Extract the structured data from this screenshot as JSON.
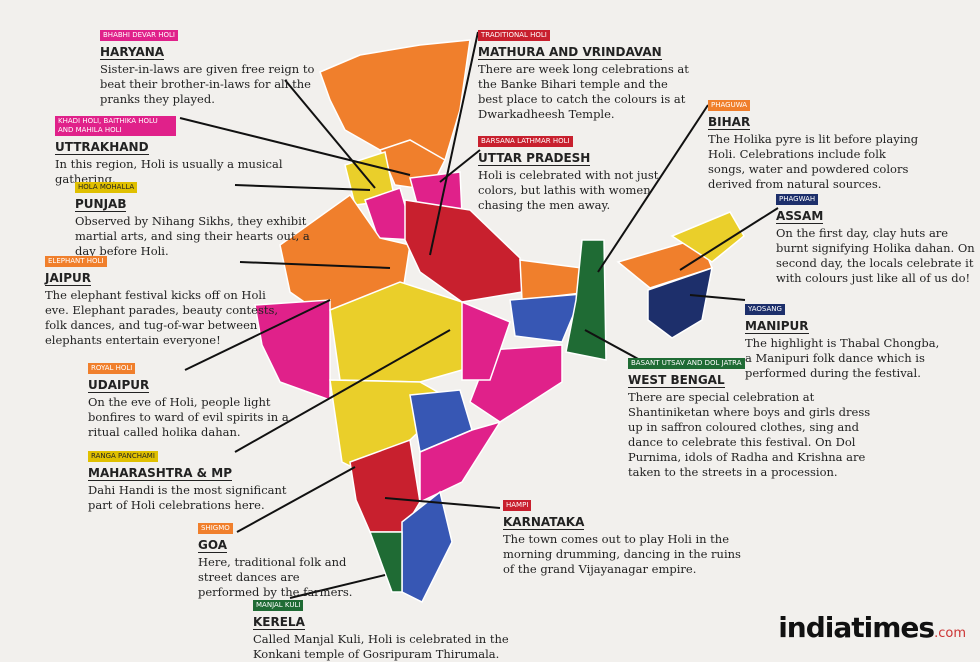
{
  "annotations": [
    {
      "tag": "BHABHI DEVAR HOLI",
      "title": "HARYANA",
      "text": "Sister-in-laws are given free reign to beat their brother-in-laws for all the pranks they played."
    },
    {
      "tag": "KHADI HOLI, BAITHIKA HOLU AND MAHILA HOLI",
      "title": "UTTRAKHAND",
      "text": "In this region, Holi is usually a musical gathering."
    },
    {
      "tag": "HOLA MOHALLA",
      "title": "PUNJAB",
      "text": "Observed by Nihang Sikhs, they exhibit martial arts, and sing their hearts out, a day before Holi."
    },
    {
      "tag": "ELEPHANT HOLI",
      "title": "JAIPUR",
      "text": "The elephant festival kicks off on Holi eve. Elephant parades, beauty contests, folk dances, and tug-of-war between elephants entertain everyone!"
    },
    {
      "tag": "ROYAL HOLI",
      "title": "UDAIPUR",
      "text": "On the eve of Holi, people light bonfires to ward of evil spirits in a ritual called holika dahan."
    },
    {
      "tag": "RANGA PANCHAMI",
      "title": "MAHARASHTRA & MP",
      "text": "Dahi Handi is the most significant part of Holi celebrations here."
    },
    {
      "tag": "SHIGMO",
      "title": "GOA",
      "text": "Here, traditional folk and street dances are performed by the farmers."
    },
    {
      "tag": "MANJAL KULI",
      "title": "KERELA",
      "text": "Called Manjal Kuli, Holi is celebrated in the Konkani temple of Gosripuram Thirumala."
    },
    {
      "tag": "TRADITIONAL HOLI",
      "title": "MATHURA AND VRINDAVAN",
      "text": "There are week long celebrations at the Banke Bihari temple and the best place to catch the colours is at Dwarkadheesh Temple."
    },
    {
      "tag": "BARSANA LATHMAR HOLI",
      "title": "UTTAR PRADESH",
      "text": "Holi is celebrated with not just colors, but lathis with women chasing the men away."
    },
    {
      "tag": "PHAGUWA",
      "title": "BIHAR",
      "text": "The Holika pyre is lit before playing Holi. Celebrations include folk songs, water and powdered colors derived from natural sources."
    },
    {
      "tag": "PHAGWAH",
      "title": "ASSAM",
      "text": "On the first day, clay huts are burnt signifying Holika dahan. On second day, the locals celebrate it with colours just like all of us do!"
    },
    {
      "tag": "YAOSANG",
      "title": "MANIPUR",
      "text": "The highlight is Thabal Chongba, a Manipuri folk dance which is performed during the festival."
    },
    {
      "tag": "BASANT UTSAV AND DOL JATRA",
      "title": "WEST BENGAL",
      "text": "There are special celebration at Shantiniketan where boys and girls dress up in saffron coloured clothes, sing and dance to celebrate this festival. On Dol Purnima, idols of Radha and Krishna are taken to the streets in a procession."
    },
    {
      "tag": "HAMPI",
      "title": "KARNATAKA",
      "text": "The town comes out to play Holi in the morning drumming, dancing in the ruins of the grand Vijayanagar empire."
    }
  ],
  "logo": {
    "name": "indiatimes",
    "suffix": ".com"
  }
}
